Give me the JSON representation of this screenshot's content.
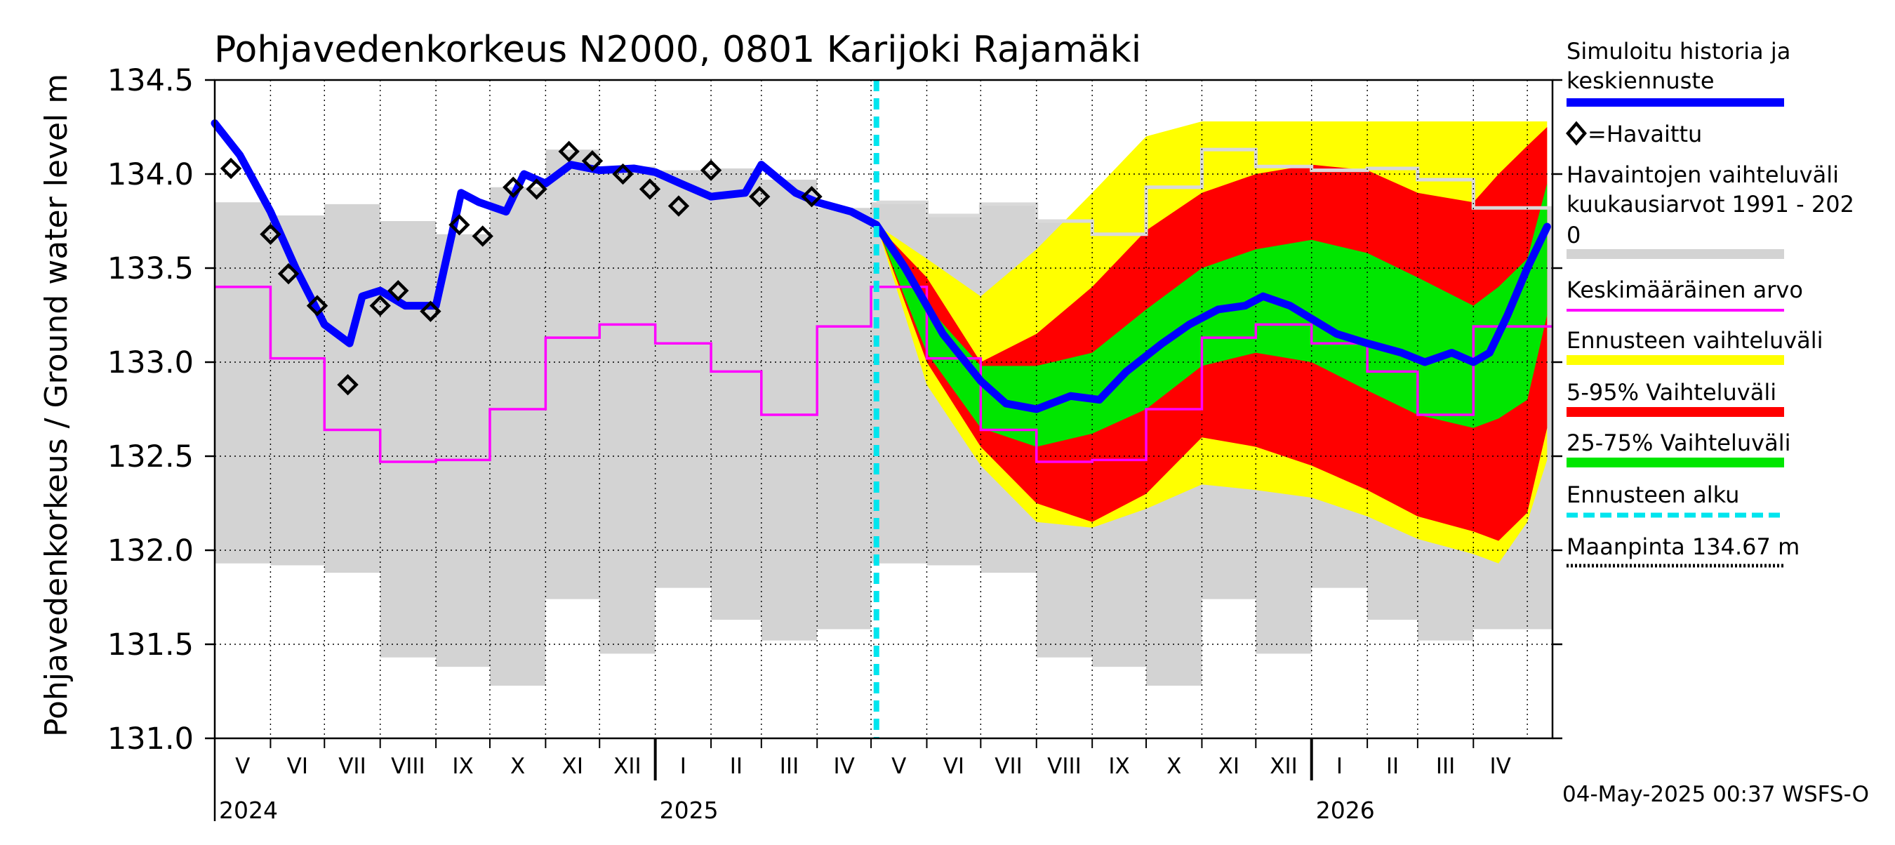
{
  "chart_data": {
    "type": "area",
    "title": "Pohjavedenkorkeus N2000, 0801 Karijoki Rajamäki",
    "ylabel": "Pohjavedenkorkeus / Ground water level   m",
    "ylim": [
      131.0,
      134.5
    ],
    "y_ticks": [
      "131.0",
      "131.5",
      "132.0",
      "132.5",
      "133.0",
      "133.5",
      "134.0",
      "134.5"
    ],
    "grid": true,
    "x_range": [
      "2024-05-01",
      "2026-05-15"
    ],
    "month_labels": [
      "V",
      "VI",
      "VII",
      "VIII",
      "IX",
      "X",
      "XI",
      "XII",
      "I",
      "II",
      "III",
      "IV",
      "V",
      "VI",
      "VII",
      "VIII",
      "IX",
      "X",
      "XI",
      "XII",
      "I",
      "II",
      "III",
      "IV"
    ],
    "year_labels": [
      "2024",
      "2025",
      "2026"
    ],
    "forecast_start": "2025-05-04",
    "ground_level": 134.67,
    "historical_range": {
      "months": [
        "2024-05",
        "2024-06",
        "2024-07",
        "2024-08",
        "2024-09",
        "2024-10",
        "2024-11",
        "2024-12",
        "2025-01",
        "2025-02",
        "2025-03",
        "2025-04",
        "2025-05",
        "2025-06",
        "2025-07",
        "2025-08",
        "2025-09",
        "2025-10",
        "2025-11",
        "2025-12",
        "2026-01",
        "2026-02",
        "2026-03",
        "2026-04"
      ],
      "max": [
        133.85,
        133.78,
        133.84,
        133.75,
        133.68,
        133.93,
        134.13,
        134.04,
        134.02,
        134.03,
        133.97,
        133.82,
        133.85,
        133.78,
        133.84,
        133.75,
        133.68,
        133.93,
        134.13,
        134.04,
        134.02,
        134.03,
        133.97,
        133.82
      ],
      "min": [
        131.93,
        131.92,
        131.88,
        131.43,
        131.38,
        131.28,
        131.74,
        131.45,
        131.8,
        131.63,
        131.52,
        131.58,
        131.93,
        131.92,
        131.88,
        131.43,
        131.38,
        131.28,
        131.74,
        131.45,
        131.8,
        131.63,
        131.52,
        131.58
      ]
    },
    "mean_monthly": {
      "months": [
        "2024-05",
        "2024-06",
        "2024-07",
        "2024-08",
        "2024-09",
        "2024-10",
        "2024-11",
        "2024-12",
        "2025-01",
        "2025-02",
        "2025-03",
        "2025-04",
        "2025-05",
        "2025-06",
        "2025-07",
        "2025-08",
        "2025-09",
        "2025-10",
        "2025-11",
        "2025-12",
        "2026-01",
        "2026-02",
        "2026-03",
        "2026-04"
      ],
      "values": [
        133.4,
        133.02,
        132.64,
        132.47,
        132.48,
        132.75,
        133.13,
        133.2,
        133.1,
        132.95,
        132.72,
        133.19,
        133.4,
        133.02,
        132.64,
        132.47,
        132.48,
        132.75,
        133.13,
        133.2,
        133.1,
        132.95,
        132.72,
        133.19
      ]
    },
    "observed": {
      "x": [
        "2024-05-10",
        "2024-06-01",
        "2024-06-11",
        "2024-06-27",
        "2024-07-14",
        "2024-08-01",
        "2024-08-11",
        "2024-08-29",
        "2024-09-14",
        "2024-09-27",
        "2024-10-14",
        "2024-10-27",
        "2024-11-14",
        "2024-11-27",
        "2024-12-14",
        "2024-12-29",
        "2025-01-14",
        "2025-02-01",
        "2025-02-28",
        "2025-03-29"
      ],
      "y": [
        134.03,
        133.68,
        133.47,
        133.3,
        132.88,
        133.3,
        133.38,
        133.27,
        133.73,
        133.67,
        133.93,
        133.92,
        134.12,
        134.07,
        134.0,
        133.92,
        133.83,
        134.02,
        133.88,
        133.88
      ]
    },
    "simulated_median": {
      "x": [
        "2024-05-01",
        "2024-05-15",
        "2024-06-01",
        "2024-06-15",
        "2024-07-01",
        "2024-07-15",
        "2024-07-22",
        "2024-08-01",
        "2024-08-15",
        "2024-09-01",
        "2024-09-15",
        "2024-09-25",
        "2024-10-10",
        "2024-10-20",
        "2024-11-01",
        "2024-11-15",
        "2024-12-01",
        "2024-12-20",
        "2025-01-01",
        "2025-01-15",
        "2025-02-01",
        "2025-02-20",
        "2025-03-01",
        "2025-03-20",
        "2025-04-01",
        "2025-04-20",
        "2025-05-04",
        "2025-05-20",
        "2025-06-10",
        "2025-07-01",
        "2025-07-15",
        "2025-08-01",
        "2025-08-20",
        "2025-09-05",
        "2025-09-20",
        "2025-10-10",
        "2025-10-25",
        "2025-11-10",
        "2025-11-25",
        "2025-12-05",
        "2025-12-20",
        "2026-01-15",
        "2026-02-01",
        "2026-02-20",
        "2026-03-05",
        "2026-03-20",
        "2026-04-01",
        "2026-04-10",
        "2026-04-20",
        "2026-05-01",
        "2026-05-12"
      ],
      "y": [
        134.27,
        134.1,
        133.8,
        133.5,
        133.2,
        133.1,
        133.35,
        133.38,
        133.3,
        133.3,
        133.9,
        133.85,
        133.8,
        134.0,
        133.95,
        134.05,
        134.02,
        134.03,
        134.01,
        133.95,
        133.88,
        133.9,
        134.05,
        133.9,
        133.85,
        133.8,
        133.73,
        133.5,
        133.15,
        132.9,
        132.78,
        132.75,
        132.82,
        132.8,
        132.95,
        133.1,
        133.2,
        133.28,
        133.3,
        133.35,
        133.3,
        133.15,
        133.1,
        133.05,
        133.0,
        133.05,
        133.0,
        133.05,
        133.25,
        133.5,
        133.72
      ]
    },
    "forecast_bands": {
      "x": [
        "2025-05-04",
        "2025-06-01",
        "2025-07-01",
        "2025-08-01",
        "2025-09-01",
        "2025-10-01",
        "2025-11-01",
        "2025-12-01",
        "2026-01-01",
        "2026-02-01",
        "2026-03-01",
        "2026-04-01",
        "2026-04-15",
        "2026-05-01",
        "2026-05-12"
      ],
      "envelope_max": [
        133.73,
        133.55,
        133.35,
        133.6,
        133.9,
        134.2,
        134.28,
        134.28,
        134.28,
        134.28,
        134.28,
        134.28,
        134.28,
        134.28,
        134.28
      ],
      "envelope_min": [
        133.73,
        132.88,
        132.45,
        132.15,
        132.12,
        132.22,
        132.35,
        132.32,
        132.28,
        132.18,
        132.06,
        131.98,
        131.93,
        132.15,
        132.48
      ],
      "p95": [
        133.73,
        133.45,
        133.0,
        133.15,
        133.4,
        133.7,
        133.9,
        134.0,
        134.05,
        134.02,
        133.9,
        133.85,
        134.0,
        134.15,
        134.25
      ],
      "p5": [
        133.73,
        133.0,
        132.55,
        132.25,
        132.15,
        132.3,
        132.6,
        132.55,
        132.45,
        132.32,
        132.18,
        132.1,
        132.05,
        132.2,
        132.65
      ],
      "p75": [
        133.73,
        133.3,
        132.98,
        132.98,
        133.05,
        133.28,
        133.5,
        133.6,
        133.65,
        133.58,
        133.45,
        133.3,
        133.4,
        133.55,
        133.95
      ],
      "p25": [
        133.73,
        133.05,
        132.65,
        132.55,
        132.62,
        132.75,
        132.98,
        133.05,
        133.0,
        132.85,
        132.72,
        132.65,
        132.7,
        132.8,
        133.25
      ]
    },
    "legend": {
      "simulated": [
        "Simuloitu historia ja",
        "keskiennuste"
      ],
      "observed": "=Havaittu",
      "hist_range": [
        "Havaintojen vaihteluväli",
        " kuukausiarvot 1991 - 202",
        "0"
      ],
      "mean": "Keskimääräinen arvo",
      "forecast_range": "Ennusteen vaihteluväli",
      "p5_95": "5-95% Vaihteluväli",
      "p25_75": "25-75% Vaihteluväli",
      "forecast_start": "Ennusteen alku",
      "ground": "Maanpinta 134.67 m"
    },
    "footer": "04-May-2025 00:37 WSFS-O",
    "colors": {
      "historical_range": "#d3d3d3",
      "historical_max_forecast": "#d9d9d9",
      "mean": "#ff00ff",
      "simulated": "#0000ff",
      "envelope": "#ffff00",
      "p5_95": "#ff0000",
      "p25_75": "#00e600",
      "forecast_start": "#00e5ee",
      "ground": "#000000"
    }
  }
}
